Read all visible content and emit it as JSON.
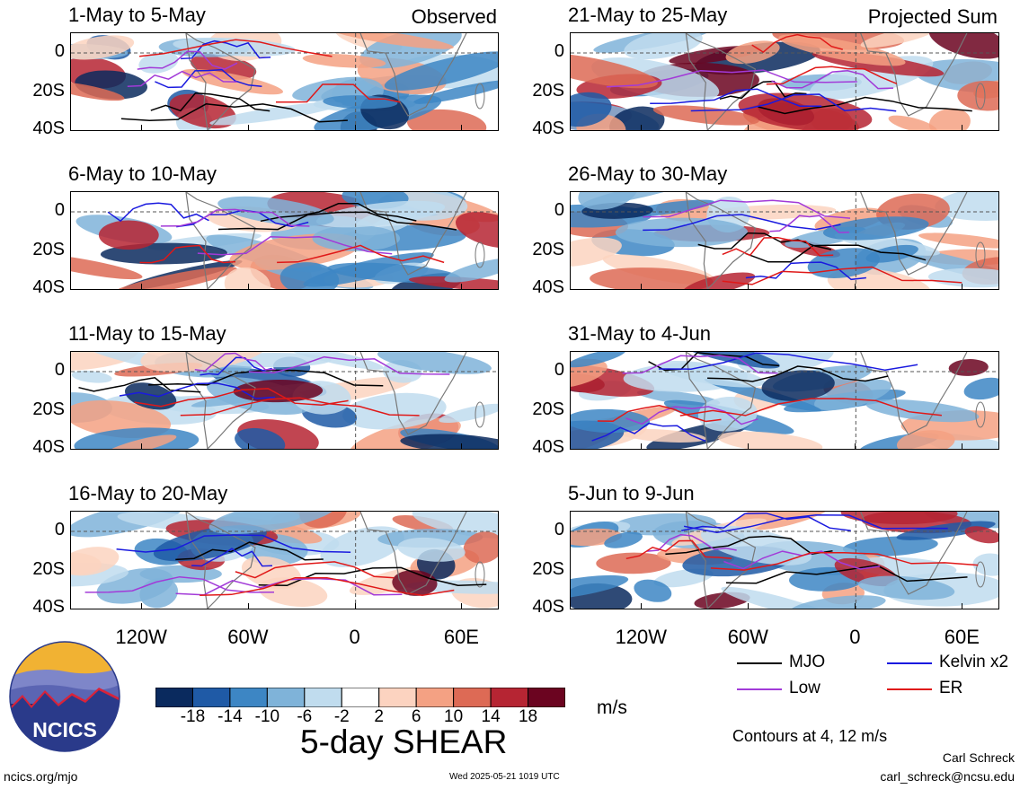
{
  "panels": [
    {
      "title": "1-May to 5-May",
      "label": "Observed"
    },
    {
      "title": "21-May to 25-May",
      "label": "Projected Sum"
    },
    {
      "title": "6-May to 10-May",
      "label": ""
    },
    {
      "title": "26-May to 30-May",
      "label": ""
    },
    {
      "title": "11-May to 15-May",
      "label": ""
    },
    {
      "title": "31-May to 4-Jun",
      "label": ""
    },
    {
      "title": "16-May to 20-May",
      "label": ""
    },
    {
      "title": "5-Jun to 9-Jun",
      "label": ""
    }
  ],
  "y_ticks": [
    "0",
    "20S",
    "40S"
  ],
  "x_ticks": [
    "120W",
    "60W",
    "0",
    "60E"
  ],
  "colorbar": {
    "ticks": [
      "-18",
      "-14",
      "-10",
      "-6",
      "-2",
      "2",
      "6",
      "10",
      "14",
      "18"
    ],
    "colors": [
      "#0a2a5e",
      "#1f5aa6",
      "#3d86c4",
      "#7fb3d9",
      "#c0dcee",
      "#ffffff",
      "#fcd3c0",
      "#f4a183",
      "#dd6a55",
      "#b62533",
      "#6b0420"
    ],
    "units": "m/s",
    "title": "5-day SHEAR"
  },
  "legend": [
    {
      "name": "MJO",
      "color": "#000000"
    },
    {
      "name": "Kelvin x2",
      "color": "#1a1adf"
    },
    {
      "name": "Low",
      "color": "#a23ad8"
    },
    {
      "name": "ER",
      "color": "#e01818"
    }
  ],
  "contours_note": "Contours at 4, 12 m/s",
  "logo_text": "NCICS",
  "footer": {
    "left": "ncics.org/mjo",
    "center": "Wed 2025-05-21 1019 UTC",
    "author": "Carl Schreck",
    "email": "carl_schreck@ncsu.edu"
  },
  "chart_data": {
    "type": "heatmap",
    "title": "5-day SHEAR",
    "units": "m/s",
    "xlabel": "",
    "ylabel": "",
    "x_ticks": [
      "120W",
      "60W",
      "0",
      "60E"
    ],
    "y_ticks": [
      "0",
      "20S",
      "40S"
    ],
    "xlim": [
      -160,
      80
    ],
    "ylim": [
      -40,
      10
    ],
    "color_levels": [
      -18,
      -14,
      -10,
      -6,
      -2,
      2,
      6,
      10,
      14,
      18
    ],
    "contour_levels": [
      4,
      12
    ],
    "series": [
      {
        "name": "MJO"
      },
      {
        "name": "Kelvin x2"
      },
      {
        "name": "Low"
      },
      {
        "name": "ER"
      }
    ],
    "grid": false
  }
}
